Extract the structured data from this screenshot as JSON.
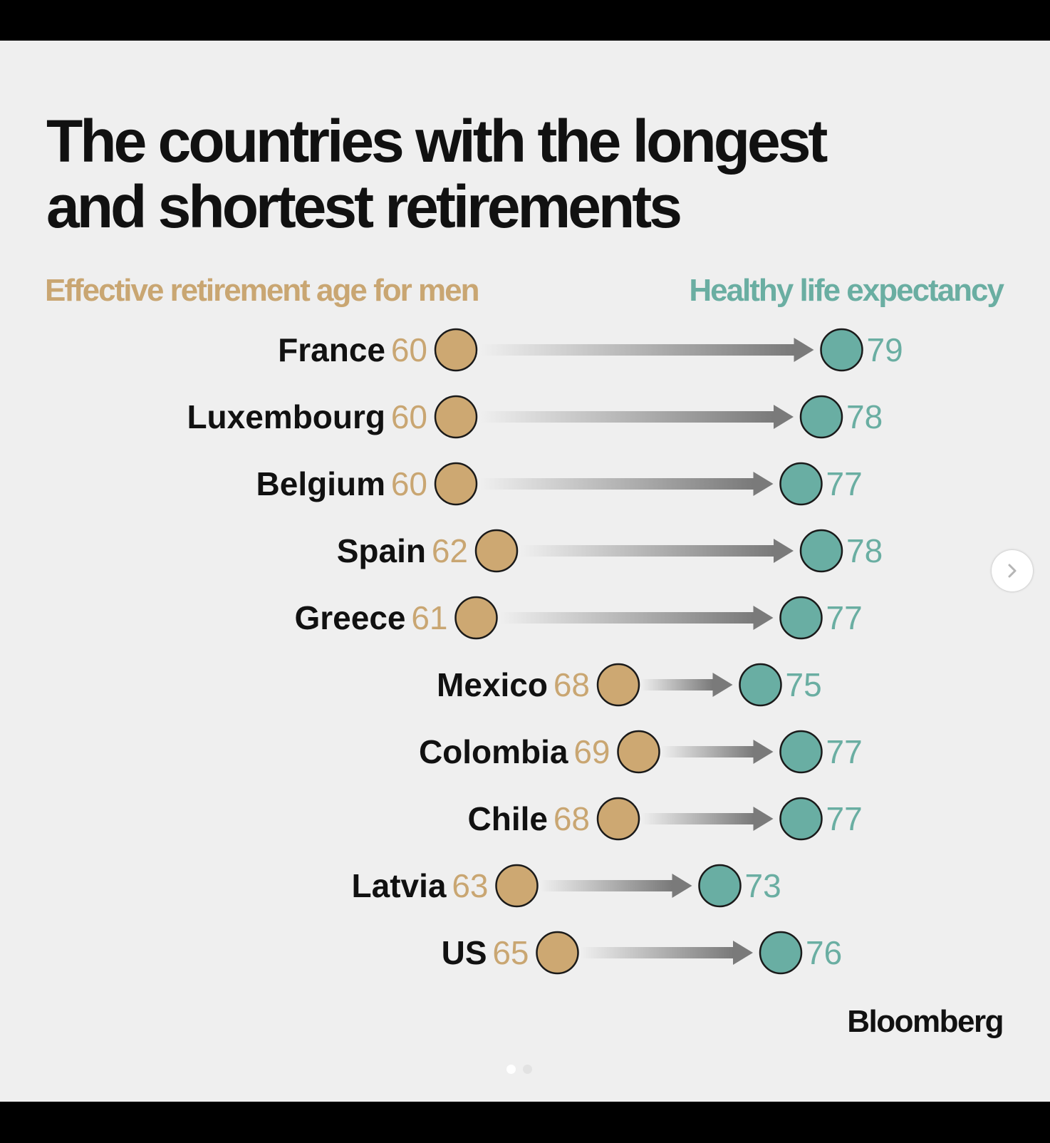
{
  "title": {
    "line1": "The countries with the longest",
    "line2": "and shortest retirements"
  },
  "legend": {
    "left": "Effective retirement age for men",
    "right": "Healthy life expectancy"
  },
  "colors": {
    "retirement": "#cda872",
    "retirement_text": "#c9a672",
    "expectancy": "#69aea3",
    "expectancy_text": "#6aaea2",
    "arrow_dark": "#7a7a7a",
    "arrow_light": "#f0f0f0",
    "outline": "#1a1a1a"
  },
  "chart_data": {
    "type": "dumbbell",
    "title": "The countries with the longest and shortest retirements",
    "series": [
      {
        "name": "Effective retirement age for men"
      },
      {
        "name": "Healthy life expectancy"
      }
    ],
    "rows": [
      {
        "country": "France",
        "retirement_age": 60,
        "life_expectancy": 79
      },
      {
        "country": "Luxembourg",
        "retirement_age": 60,
        "life_expectancy": 78
      },
      {
        "country": "Belgium",
        "retirement_age": 60,
        "life_expectancy": 77
      },
      {
        "country": "Spain",
        "retirement_age": 62,
        "life_expectancy": 78
      },
      {
        "country": "Greece",
        "retirement_age": 61,
        "life_expectancy": 77
      },
      {
        "country": "Mexico",
        "retirement_age": 68,
        "life_expectancy": 75
      },
      {
        "country": "Colombia",
        "retirement_age": 69,
        "life_expectancy": 77
      },
      {
        "country": "Chile",
        "retirement_age": 68,
        "life_expectancy": 77
      },
      {
        "country": "Latvia",
        "retirement_age": 63,
        "life_expectancy": 73
      },
      {
        "country": "US",
        "retirement_age": 65,
        "life_expectancy": 76
      }
    ]
  },
  "source": "Bloomberg",
  "carousel": {
    "current": 1,
    "total": 2
  }
}
